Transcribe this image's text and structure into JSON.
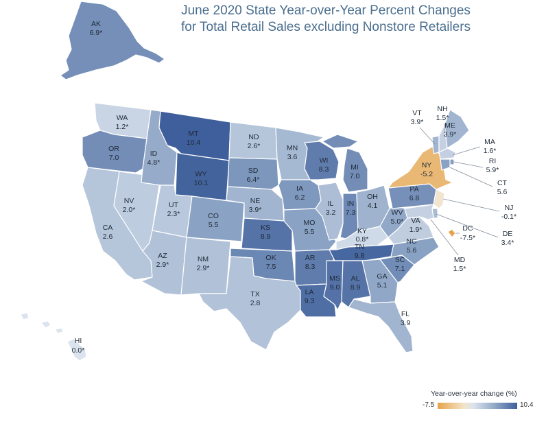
{
  "title_line1": "June 2020 State Year-over-Year Percent Changes",
  "title_line2": "for Total Retail Sales excluding Nonstore Retailers",
  "legend": {
    "title": "Year-over-year change (%)",
    "min": "-7.5",
    "max": "10.4"
  },
  "colors": {
    "low": "#e6a44a",
    "mid": "#dbe3ee",
    "high": "#3e5f9b",
    "border": "#ffffff"
  },
  "states": {
    "AK": {
      "abbr": "AK",
      "value": "6.9*"
    },
    "HI": {
      "abbr": "HI",
      "value": "0.0*"
    },
    "WA": {
      "abbr": "WA",
      "value": "1.2*"
    },
    "OR": {
      "abbr": "OR",
      "value": "7.0"
    },
    "CA": {
      "abbr": "CA",
      "value": "2.6"
    },
    "NV": {
      "abbr": "NV",
      "value": "2.0*"
    },
    "ID": {
      "abbr": "ID",
      "value": "4.8*"
    },
    "MT": {
      "abbr": "MT",
      "value": "10.4"
    },
    "WY": {
      "abbr": "WY",
      "value": "10.1"
    },
    "UT": {
      "abbr": "UT",
      "value": "2.3*"
    },
    "AZ": {
      "abbr": "AZ",
      "value": "2.9*"
    },
    "CO": {
      "abbr": "CO",
      "value": "5.5"
    },
    "NM": {
      "abbr": "NM",
      "value": "2.9*"
    },
    "ND": {
      "abbr": "ND",
      "value": "2.6*"
    },
    "SD": {
      "abbr": "SD",
      "value": "6.4*"
    },
    "NE": {
      "abbr": "NE",
      "value": "3.9*"
    },
    "KS": {
      "abbr": "KS",
      "value": "8.9"
    },
    "OK": {
      "abbr": "OK",
      "value": "7.5"
    },
    "TX": {
      "abbr": "TX",
      "value": "2.8"
    },
    "MN": {
      "abbr": "MN",
      "value": "3.6"
    },
    "IA": {
      "abbr": "IA",
      "value": "6.2"
    },
    "MO": {
      "abbr": "MO",
      "value": "5.5"
    },
    "AR": {
      "abbr": "AR",
      "value": "8.3"
    },
    "LA": {
      "abbr": "LA",
      "value": "9.3"
    },
    "WI": {
      "abbr": "WI",
      "value": "8.3"
    },
    "IL": {
      "abbr": "IL",
      "value": "3.2"
    },
    "MI": {
      "abbr": "MI",
      "value": "7.0"
    },
    "IN": {
      "abbr": "IN",
      "value": "7.3"
    },
    "OH": {
      "abbr": "OH",
      "value": "4.1"
    },
    "KY": {
      "abbr": "KY",
      "value": "0.8*"
    },
    "TN": {
      "abbr": "TN",
      "value": "9.8"
    },
    "MS": {
      "abbr": "MS",
      "value": "9.0"
    },
    "AL": {
      "abbr": "AL",
      "value": "8.9"
    },
    "GA": {
      "abbr": "GA",
      "value": "5.1"
    },
    "FL": {
      "abbr": "FL",
      "value": "3.9"
    },
    "SC": {
      "abbr": "SC",
      "value": "7.1"
    },
    "NC": {
      "abbr": "NC",
      "value": "5.6"
    },
    "VA": {
      "abbr": "VA",
      "value": "1.9*"
    },
    "WV": {
      "abbr": "WV",
      "value": "5.0*"
    },
    "PA": {
      "abbr": "PA",
      "value": "6.8"
    },
    "NY": {
      "abbr": "NY",
      "value": "-5.2"
    },
    "VT": {
      "abbr": "VT",
      "value": "3.9*"
    },
    "NH": {
      "abbr": "NH",
      "value": "1.5*"
    },
    "ME": {
      "abbr": "ME",
      "value": "3.9*"
    },
    "MA": {
      "abbr": "MA",
      "value": "1.6*"
    },
    "RI": {
      "abbr": "RI",
      "value": "5.9*"
    },
    "CT": {
      "abbr": "CT",
      "value": "5.6"
    },
    "NJ": {
      "abbr": "NJ",
      "value": "-0.1*"
    },
    "DE": {
      "abbr": "DE",
      "value": "3.4*"
    },
    "MD": {
      "abbr": "MD",
      "value": "1.5*"
    },
    "DC": {
      "abbr": "DC",
      "value": "-7.5*"
    }
  }
}
